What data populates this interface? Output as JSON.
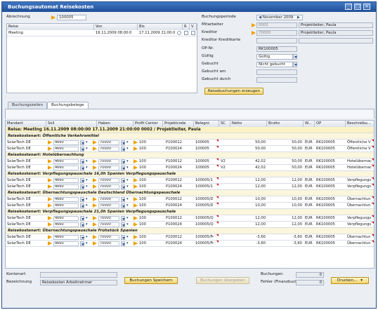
{
  "window": {
    "title": "Buchungsautomat Reisekosten"
  },
  "header": {
    "abrechnung_label": "Abrechnung",
    "abrechnung_value": "100005",
    "trip_columns": [
      "Reise",
      "Von",
      "Bis",
      "R",
      "V"
    ],
    "trip_row": {
      "reise": "Meeting",
      "von": "16.11.2009 08:00:0",
      "bis": "17.11.2009 21:00:0"
    }
  },
  "right": {
    "periode_label": "Buchungsperiode",
    "periode_value": "November 2009",
    "mitarbeiter_label": "Mitarbeiter",
    "mitarbeiter_value": "0002",
    "mitarbeiter_name": "Projektleiter, Paula",
    "kreditor_label": "Kreditor",
    "kreditor_value": "70000",
    "kreditor_name": "Projektleiter, Paula",
    "kreditor_kk_label": "Kreditor Kreditkarte",
    "op_label": "OP-Nr.",
    "op_value": "RK100005",
    "gueltig_label": "Gültig",
    "gueltig_value": "Gültig",
    "gebucht_label": "Gebucht",
    "gebucht_value": "Nicht gebucht",
    "gebucht_am_label": "Gebucht am",
    "gebucht_durch_label": "Gebucht durch",
    "erzeugen_button": "Reisebuchungen erzeugen"
  },
  "tabs": [
    "Buchungszeilen",
    "Buchungsbelege"
  ],
  "grid": {
    "columns": [
      "Mandant",
      "Soll",
      "Haben",
      "Profit Center",
      "Projektcode",
      "Belegnr.",
      "SC",
      "Netto",
      "Brutto",
      "W...",
      "OP",
      "Beschreibu..."
    ],
    "trip_header": "Reise: Meeting 16.11.2009 08:00:00 17.11.2009 21:00:00 0002 / Projektleiter, Paula",
    "sections": [
      {
        "title": "Reisekostenart: Öffentliche Verkehrsmittel",
        "rows": [
          {
            "mandant": "SolarTech DE",
            "soll": "4660",
            "haben": "70000",
            "pc": "100",
            "projekt": "P100012",
            "beleg": "100005",
            "sc": "",
            "netto": "50,00",
            "brutto": "50,00",
            "w": "EUR",
            "op": "RK100005",
            "beschr": "Öffentliche V"
          },
          {
            "mandant": "SolarTech DE",
            "soll": "4660",
            "haben": "70000",
            "pc": "100",
            "projekt": "P100024",
            "beleg": "100005",
            "sc": "",
            "netto": "50,00",
            "brutto": "50,00",
            "w": "EUR",
            "op": "RK100005",
            "beschr": "Öffentliche V"
          }
        ]
      },
      {
        "title": "Reisekostenart: Hotelübernachtung",
        "rows": [
          {
            "mandant": "SolarTech DE",
            "soll": "4660",
            "haben": "70000",
            "pc": "100",
            "projekt": "P100012",
            "beleg": "100005",
            "sc": "V2",
            "netto": "42,02",
            "brutto": "50,00",
            "w": "EUR",
            "op": "RK100005",
            "beschr": "Hotelübernac"
          },
          {
            "mandant": "SolarTech DE",
            "soll": "4660",
            "haben": "70000",
            "pc": "100",
            "projekt": "P100024",
            "beleg": "100005",
            "sc": "V2",
            "netto": "42,02",
            "brutto": "50,00",
            "w": "EUR",
            "op": "RK100005",
            "beschr": "Hotelübernac"
          }
        ]
      },
      {
        "title": "Reisekostenart: Verpflegungspauschale 16,0h Spanien Verpflegungspauschale",
        "rows": [
          {
            "mandant": "SolarTech DE",
            "soll": "4660",
            "haben": "70000",
            "pc": "100",
            "projekt": "P100012",
            "beleg": "100005/1",
            "sc": "",
            "netto": "12,00",
            "brutto": "12,00",
            "w": "EUR",
            "op": "RK100005",
            "beschr": "Verpflegungs"
          },
          {
            "mandant": "SolarTech DE",
            "soll": "4660",
            "haben": "70000",
            "pc": "100",
            "projekt": "P100024",
            "beleg": "100005/1",
            "sc": "",
            "netto": "12,00",
            "brutto": "12,00",
            "w": "EUR",
            "op": "RK100005",
            "beschr": "Verpflegungs"
          }
        ]
      },
      {
        "title": "Reisekostenart: Übernachtungspauschale Deutschland Übernachtungspauschale",
        "rows": [
          {
            "mandant": "SolarTech DE",
            "soll": "4660",
            "haben": "70000",
            "pc": "100",
            "projekt": "P100012",
            "beleg": "100005/D",
            "sc": "",
            "netto": "10,00",
            "brutto": "10,00",
            "w": "EUR",
            "op": "RK100005",
            "beschr": "Übernachtun"
          },
          {
            "mandant": "SolarTech DE",
            "soll": "4660",
            "haben": "70000",
            "pc": "100",
            "projekt": "P100024",
            "beleg": "100005/D",
            "sc": "",
            "netto": "10,00",
            "brutto": "10,00",
            "w": "EUR",
            "op": "RK100005",
            "beschr": "Übernachtun"
          }
        ]
      },
      {
        "title": "Reisekostenart: Verpflegungspauschale 21,0h Spanien Verpflegungspauschale",
        "rows": [
          {
            "mandant": "SolarTech DE",
            "soll": "4660",
            "haben": "70000",
            "pc": "100",
            "projekt": "P100012",
            "beleg": "100005/Q",
            "sc": "",
            "netto": "12,00",
            "brutto": "12,00",
            "w": "EUR",
            "op": "RK100005",
            "beschr": "Verpflegungs"
          },
          {
            "mandant": "SolarTech DE",
            "soll": "4660",
            "haben": "70000",
            "pc": "100",
            "projekt": "P100024",
            "beleg": "100005/Q",
            "sc": "",
            "netto": "12,00",
            "brutto": "12,00",
            "w": "EUR",
            "op": "RK100005",
            "beschr": "Verpflegungs"
          }
        ]
      },
      {
        "title": "Reisekostenart: Übernachtungspauschale Frühstück Spanien",
        "rows": [
          {
            "mandant": "SolarTech DE",
            "soll": "4660",
            "haben": "70000",
            "pc": "100",
            "projekt": "P100012",
            "beleg": "100005/Fr",
            "sc": "",
            "netto": "-3,60",
            "brutto": "-3,60",
            "w": "EUR",
            "op": "RK100005",
            "beschr": "Übernachtun"
          },
          {
            "mandant": "SolarTech DE",
            "soll": "4660",
            "haben": "70000",
            "pc": "100",
            "projekt": "P100024",
            "beleg": "100005/Fr",
            "sc": "",
            "netto": "-3,60",
            "brutto": "-3,60",
            "w": "EUR",
            "op": "RK100005",
            "beschr": "Übernachtun"
          }
        ]
      }
    ]
  },
  "footer": {
    "kontenart_label": "Kontenart",
    "bezeichnung_label": "Bezeichnung",
    "bezeichnung_value": "Reisekosten Arbeitnehmer",
    "speichern_button": "Buchungen Speichern",
    "uebergeben_button": "Buchungen übergeben",
    "buchungen_label": "Buchungen",
    "buchungen_value": "0",
    "fehler_label": "Fehler (Finanzbuchh)",
    "fehler_value": "0",
    "drucken_button": "Drucken..."
  },
  "colors": {
    "titlebar": "#2b5ea8",
    "accent": "#f0a000",
    "section_bg": "#fbf6dc",
    "button": "#f2d36a"
  }
}
